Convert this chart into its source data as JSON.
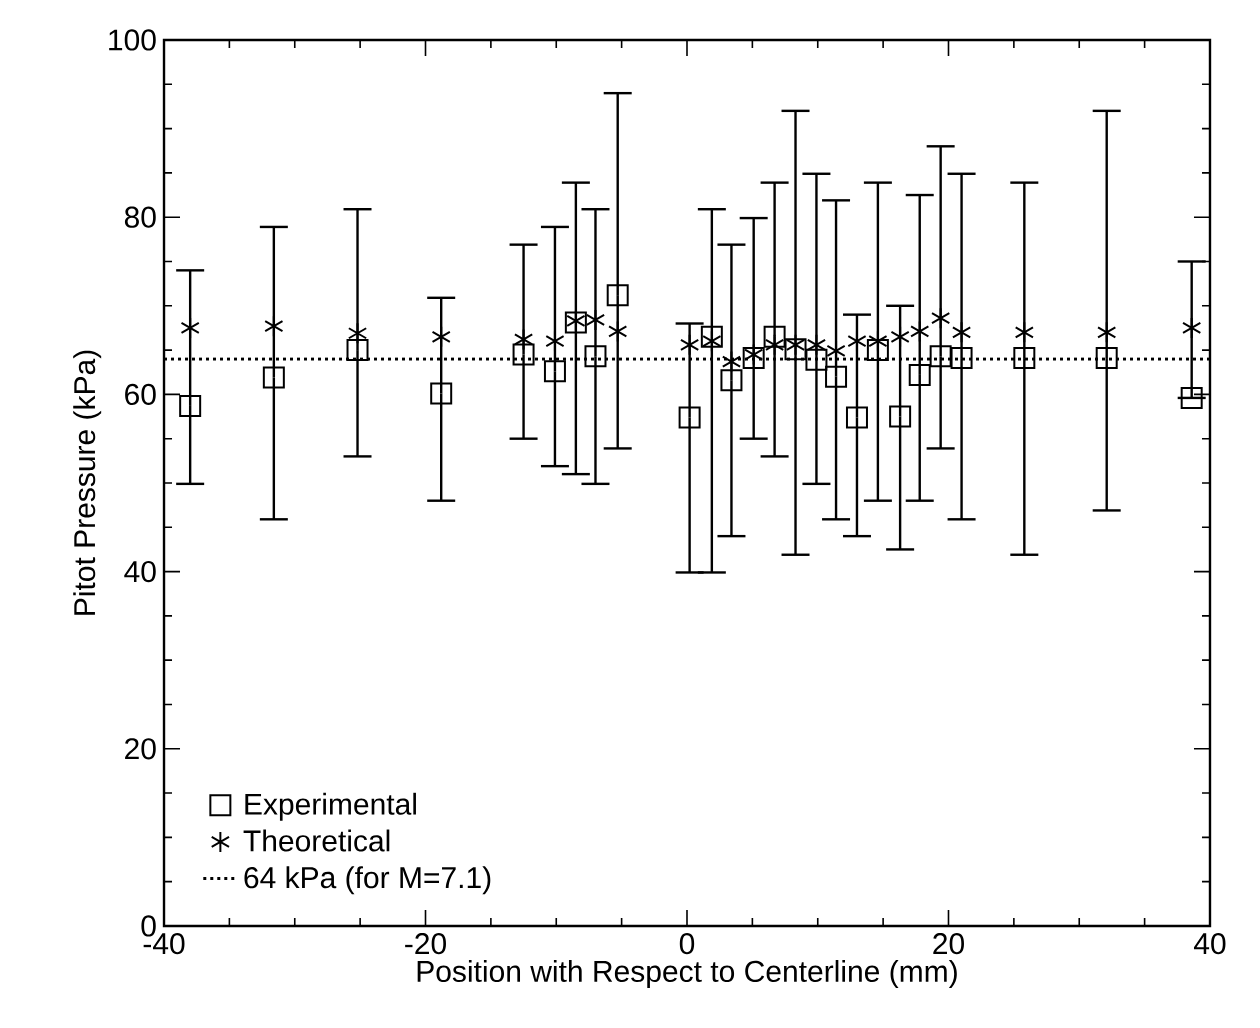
{
  "chart_data": {
    "type": "scatter",
    "xlabel": "Position with Respect to Centerline (mm)",
    "ylabel": "Pitot Pressure (kPa)",
    "xlim": [
      -40,
      40
    ],
    "ylim": [
      0,
      100
    ],
    "xticks": [
      -40,
      -20,
      0,
      20,
      40
    ],
    "yticks": [
      0,
      20,
      40,
      60,
      80,
      100
    ],
    "grid": false,
    "legend": "bottom left",
    "x": [
      -38,
      -31.6,
      -25.2,
      -18.8,
      -12.5,
      -10.1,
      -8.5,
      -7.0,
      -5.3,
      0.2,
      1.9,
      3.4,
      5.1,
      6.7,
      8.3,
      9.9,
      11.4,
      13.0,
      14.6,
      16.3,
      17.8,
      19.4,
      21.0,
      25.8,
      32.1,
      38.6
    ],
    "series": [
      {
        "name": "Experimental",
        "color": "#000000",
        "marker": "square",
        "values": [
          58.7,
          61.9,
          65,
          60.1,
          64.5,
          62.6,
          68.1,
          64.3,
          71.2,
          57.4,
          66.5,
          61.6,
          64.1,
          66.5,
          65.1,
          63.9,
          62,
          57.4,
          65,
          57.5,
          62.2,
          64.3,
          64.1,
          64.1,
          64.1,
          59.6
        ],
        "errors": [
          [
            49.9,
            74
          ],
          [
            45.9,
            78.9
          ],
          [
            53,
            80.9
          ],
          [
            48,
            70.9
          ],
          [
            55,
            76.9
          ],
          [
            51.9,
            78.9
          ],
          [
            51,
            83.9
          ],
          [
            49.9,
            80.9
          ],
          [
            53.9,
            94
          ],
          [
            39.9,
            68
          ],
          [
            39.9,
            80.9
          ],
          [
            44,
            76.9
          ],
          [
            55,
            79.9
          ],
          [
            53,
            83.9
          ],
          [
            41.9,
            92
          ],
          [
            49.9,
            84.9
          ],
          [
            45.9,
            81.9
          ],
          [
            44,
            69
          ],
          [
            48,
            83.9
          ],
          [
            42.5,
            70
          ],
          [
            48,
            82.5
          ],
          [
            53.9,
            88
          ],
          [
            45.9,
            84.9
          ],
          [
            41.9,
            83.9
          ],
          [
            46.9,
            92
          ],
          [
            59.6,
            75
          ]
        ]
      },
      {
        "name": "Theoretical",
        "color": "#000000",
        "marker": "cross",
        "values": [
          67.5,
          67.7,
          66.9,
          66.5,
          66.2,
          66,
          68.3,
          68.4,
          67.1,
          65.6,
          66,
          63.7,
          64.5,
          65.6,
          65.6,
          65.6,
          64.9,
          66,
          66,
          66.5,
          67.1,
          68.6,
          67,
          67,
          67,
          67.5
        ]
      }
    ],
    "ref_lines": [
      {
        "axis": "y",
        "value": 64,
        "label": "64 kPa (for M=7.1)",
        "color": "#000000",
        "line_style": "dotted"
      }
    ]
  }
}
